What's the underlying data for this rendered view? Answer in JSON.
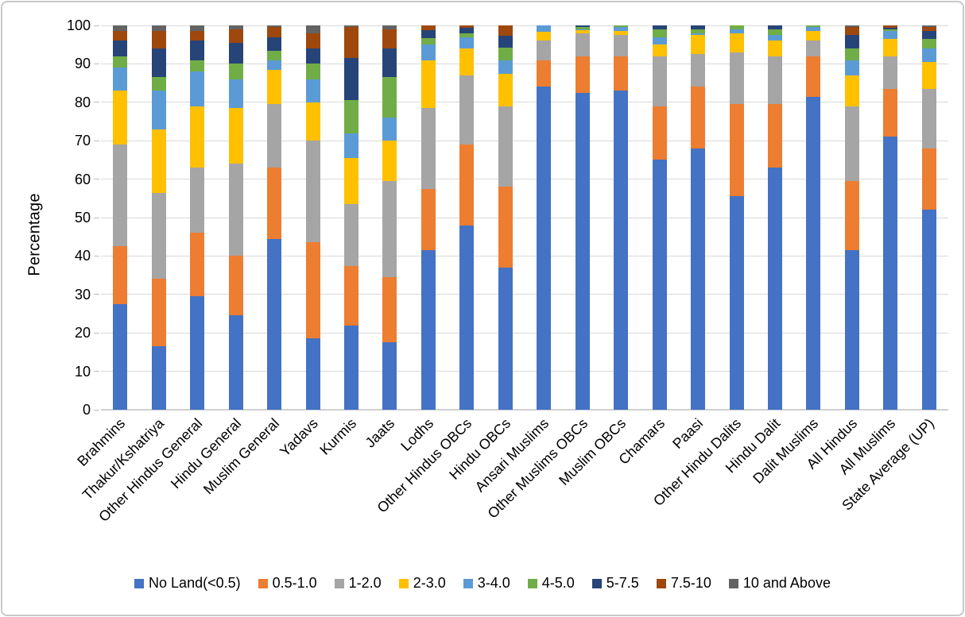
{
  "chart_data": {
    "type": "bar",
    "stacked": true,
    "title": "",
    "xlabel": "",
    "ylabel": "Percentage",
    "ylim": [
      0,
      100
    ],
    "yticks": [
      0,
      10,
      20,
      30,
      40,
      50,
      60,
      70,
      80,
      90,
      100
    ],
    "grid": true,
    "legend_position": "bottom",
    "categories": [
      "Brahmins",
      "Thakur/Kshatriya",
      "Other Hindus General",
      "Hindu General",
      "Muslim General",
      "Yadavs",
      "Kurmis",
      "Jaats",
      "Lodhs",
      "Other Hindus OBCs",
      "Hindu OBCs",
      "Ansari Muslims",
      "Other Muslims OBCs",
      "Muslim OBCs",
      "Chamars",
      "Paasi",
      "Other Hindu Dalits",
      "Hindu Dalit",
      "Dalit Muslims",
      "All Hindus",
      "All Muslims",
      "State Average (UP)"
    ],
    "series": [
      {
        "name": "No Land(<0.5)",
        "color": "#4472C4",
        "values": [
          27.5,
          16.5,
          29.5,
          24.5,
          44.5,
          18.5,
          22,
          17.5,
          41.5,
          48,
          37,
          84,
          82.5,
          83,
          65,
          68,
          55.5,
          63,
          81.5,
          41.5,
          71,
          52
        ]
      },
      {
        "name": "0.5-1.0",
        "color": "#ED7D31",
        "values": [
          15,
          17.5,
          16.5,
          15.5,
          18.5,
          25,
          15.5,
          17,
          16,
          21,
          21,
          7,
          9.5,
          9,
          14,
          16,
          24,
          16.5,
          10.5,
          18,
          12.5,
          16
        ]
      },
      {
        "name": "1-2.0",
        "color": "#A5A5A5",
        "values": [
          26.5,
          22.5,
          17,
          24,
          16.5,
          26.5,
          16,
          25,
          21,
          18,
          21,
          5,
          6,
          5.5,
          13,
          8.5,
          13.5,
          12.5,
          4,
          19.5,
          8.5,
          15.5
        ]
      },
      {
        "name": "2-3.0",
        "color": "#FFC000",
        "values": [
          14,
          16.5,
          16,
          14.5,
          9,
          10,
          12,
          10.5,
          12.5,
          7,
          8.5,
          2.3,
          0.7,
          1,
          3,
          5,
          5,
          4,
          2.5,
          8,
          4.5,
          7
        ]
      },
      {
        "name": "3-4.0",
        "color": "#5B9BD5",
        "values": [
          6,
          10,
          9,
          7.5,
          2.5,
          6,
          6.5,
          6,
          4,
          3,
          3.5,
          1.7,
          0.3,
          1,
          2,
          0.5,
          1,
          1.5,
          1,
          4,
          2,
          3.5
        ]
      },
      {
        "name": "4-5.0",
        "color": "#70AD47",
        "values": [
          3,
          3.5,
          3,
          4,
          2.5,
          4,
          8.5,
          10.5,
          1.8,
          1,
          3.3,
          0,
          0.5,
          0.5,
          2,
          1,
          1,
          1.5,
          0.5,
          3,
          0.5,
          2.5
        ]
      },
      {
        "name": "5-7.5",
        "color": "#264478",
        "values": [
          4,
          7.5,
          5,
          5.5,
          3.5,
          4,
          11,
          7.5,
          2,
          1.3,
          3.1,
          0,
          0.5,
          0,
          1,
          1,
          0,
          1,
          0,
          3.5,
          0.5,
          2
        ]
      },
      {
        "name": "7.5-10",
        "color": "#9E480E",
        "values": [
          2.5,
          4.5,
          2.5,
          3.5,
          2.5,
          4,
          8,
          5,
          1.2,
          0.7,
          2.6,
          0,
          0,
          0,
          0,
          0,
          0,
          0,
          0,
          2,
          0.5,
          1
        ]
      },
      {
        "name": "10 and Above",
        "color": "#636363",
        "values": [
          1.5,
          1.5,
          1.5,
          1,
          0.5,
          2,
          0.5,
          1,
          0,
          0,
          0,
          0,
          0,
          0,
          0,
          0,
          0,
          0,
          0,
          0.5,
          0,
          0.5
        ]
      }
    ]
  }
}
